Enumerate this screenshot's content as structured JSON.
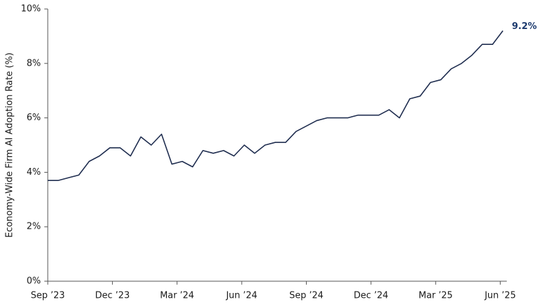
{
  "chart_data": {
    "type": "line",
    "y_label": "Economy-Wide Firm AI Adoption Rate (%)",
    "x": [
      0,
      0.48,
      0.96,
      1.44,
      1.92,
      2.4,
      2.88,
      3.36,
      3.84,
      4.32,
      4.8,
      5.28,
      5.76,
      6.24,
      6.72,
      7.2,
      7.68,
      8.16,
      8.64,
      9.12,
      9.6,
      10.08,
      10.56,
      11.04,
      11.52,
      12,
      12.48,
      12.96,
      13.44,
      13.92,
      14.4,
      14.88,
      15.36,
      15.84,
      16.32,
      16.8,
      17.28,
      17.76,
      18.24,
      18.72,
      19.2,
      19.68,
      20.16,
      20.64,
      21.12
    ],
    "values": [
      3.7,
      3.7,
      3.8,
      3.9,
      4.4,
      4.6,
      4.9,
      4.9,
      4.6,
      5.3,
      5.0,
      5.4,
      4.3,
      4.4,
      4.2,
      4.8,
      4.7,
      4.8,
      4.6,
      5.0,
      4.7,
      5.0,
      5.1,
      5.1,
      5.5,
      5.7,
      5.9,
      6.0,
      6.0,
      6.0,
      6.1,
      6.1,
      6.1,
      6.3,
      6.0,
      6.7,
      6.8,
      7.3,
      7.4,
      7.8,
      8.0,
      8.3,
      8.7,
      8.7,
      9.2
    ],
    "color": "#1f2d4f",
    "xlim": [
      0,
      21.3
    ],
    "xticks": [
      {
        "value": 0,
        "label": "Sep ’23"
      },
      {
        "value": 3,
        "label": "Dec ’23"
      },
      {
        "value": 6,
        "label": "Mar ’24"
      },
      {
        "value": 9,
        "label": "Jun ’24"
      },
      {
        "value": 12,
        "label": "Sep ’24"
      },
      {
        "value": 15,
        "label": "Dec ’24"
      },
      {
        "value": 18,
        "label": "Mar ’25"
      },
      {
        "value": 21,
        "label": "Jun ’25"
      }
    ],
    "ylim": [
      0,
      10
    ],
    "yticks": [
      {
        "value": 0,
        "label": "0%"
      },
      {
        "value": 2,
        "label": "2%"
      },
      {
        "value": 4,
        "label": "4%"
      },
      {
        "value": 6,
        "label": "6%"
      },
      {
        "value": 8,
        "label": "8%"
      },
      {
        "value": 10,
        "label": "10%"
      }
    ],
    "grid": false,
    "annotation": {
      "x": 21.12,
      "y": 9.2,
      "text": "9.2%",
      "color": "#1c3a6e"
    }
  }
}
